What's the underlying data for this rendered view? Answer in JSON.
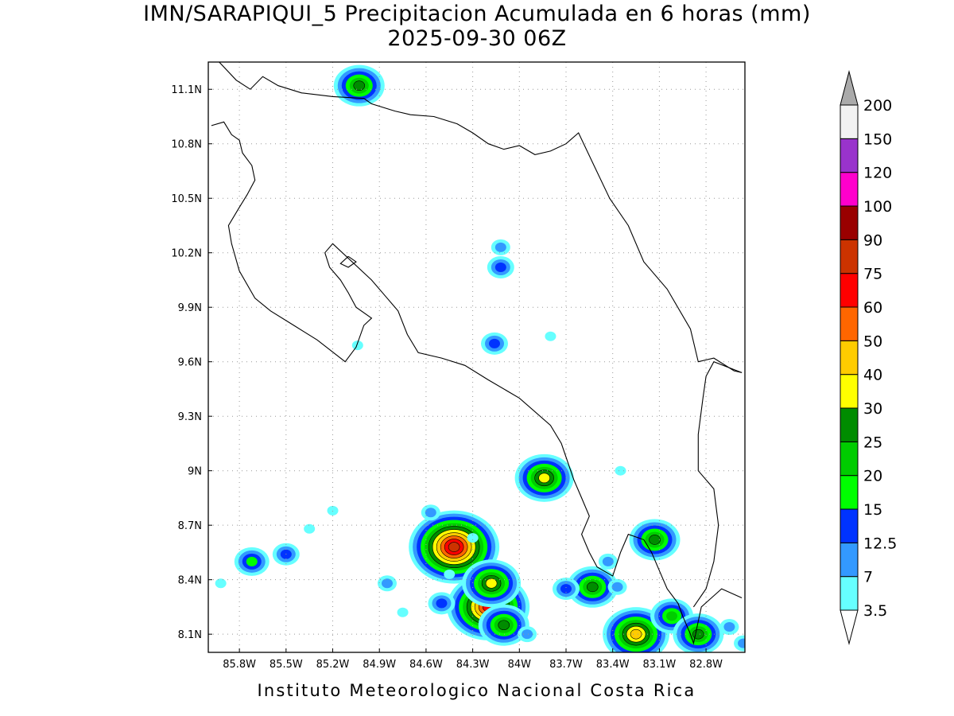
{
  "title": {
    "line1": "IMN/SARAPIQUI_5 Precipitacion Acumulada en 6 horas (mm)",
    "line2": "2025-09-30 06Z"
  },
  "footer": "Instituto Meteorologico Nacional Costa Rica",
  "map": {
    "lon_range": [
      -86.0,
      -82.55
    ],
    "lat_range": [
      8.0,
      11.25
    ],
    "grid": "dotted",
    "lon_ticks": [
      {
        "value": -85.8,
        "label": "85.8W"
      },
      {
        "value": -85.5,
        "label": "85.5W"
      },
      {
        "value": -85.2,
        "label": "85.2W"
      },
      {
        "value": -84.9,
        "label": "84.9W"
      },
      {
        "value": -84.6,
        "label": "84.6W"
      },
      {
        "value": -84.3,
        "label": "84.3W"
      },
      {
        "value": -84.0,
        "label": "84W"
      },
      {
        "value": -83.7,
        "label": "83.7W"
      },
      {
        "value": -83.4,
        "label": "83.4W"
      },
      {
        "value": -83.1,
        "label": "83.1W"
      },
      {
        "value": -82.8,
        "label": "82.8W"
      }
    ],
    "lat_ticks": [
      {
        "value": 8.1,
        "label": "8.1N"
      },
      {
        "value": 8.4,
        "label": "8.4N"
      },
      {
        "value": 8.7,
        "label": "8.7N"
      },
      {
        "value": 9.0,
        "label": "9N"
      },
      {
        "value": 9.3,
        "label": "9.3N"
      },
      {
        "value": 9.6,
        "label": "9.6N"
      },
      {
        "value": 9.9,
        "label": "9.9N"
      },
      {
        "value": 10.2,
        "label": "10.2N"
      },
      {
        "value": 10.5,
        "label": "10.5N"
      },
      {
        "value": 10.8,
        "label": "10.8N"
      },
      {
        "value": 11.1,
        "label": "11.1N"
      }
    ],
    "coastlines": [
      [
        [
          -85.93,
          11.25
        ],
        [
          -85.82,
          11.15
        ],
        [
          -85.73,
          11.1
        ],
        [
          -85.65,
          11.17
        ],
        [
          -85.55,
          11.12
        ],
        [
          -85.4,
          11.08
        ],
        [
          -85.2,
          11.06
        ],
        [
          -85.0,
          11.05
        ],
        [
          -84.95,
          11.02
        ],
        [
          -84.8,
          10.98
        ],
        [
          -84.7,
          10.96
        ],
        [
          -84.55,
          10.95
        ],
        [
          -84.4,
          10.91
        ],
        [
          -84.3,
          10.86
        ],
        [
          -84.2,
          10.8
        ],
        [
          -84.1,
          10.77
        ],
        [
          -84.0,
          10.79
        ],
        [
          -83.9,
          10.74
        ],
        [
          -83.8,
          10.76
        ],
        [
          -83.7,
          10.8
        ],
        [
          -83.62,
          10.86
        ],
        [
          -83.52,
          10.68
        ],
        [
          -83.42,
          10.5
        ],
        [
          -83.3,
          10.35
        ],
        [
          -83.2,
          10.15
        ],
        [
          -83.05,
          10.0
        ],
        [
          -82.9,
          9.78
        ],
        [
          -82.85,
          9.6
        ],
        [
          -82.75,
          9.62
        ],
        [
          -82.62,
          9.55
        ],
        [
          -82.57,
          9.54
        ]
      ],
      [
        [
          -85.98,
          10.9
        ],
        [
          -85.9,
          10.92
        ],
        [
          -85.85,
          10.85
        ],
        [
          -85.8,
          10.82
        ],
        [
          -85.78,
          10.75
        ],
        [
          -85.72,
          10.68
        ],
        [
          -85.7,
          10.6
        ],
        [
          -85.75,
          10.52
        ],
        [
          -85.8,
          10.45
        ],
        [
          -85.87,
          10.35
        ],
        [
          -85.85,
          10.25
        ],
        [
          -85.8,
          10.1
        ],
        [
          -85.7,
          9.95
        ],
        [
          -85.6,
          9.88
        ],
        [
          -85.45,
          9.8
        ],
        [
          -85.3,
          9.72
        ],
        [
          -85.12,
          9.6
        ],
        [
          -85.05,
          9.68
        ],
        [
          -85.0,
          9.8
        ],
        [
          -84.95,
          9.84
        ],
        [
          -85.05,
          9.9
        ],
        [
          -85.1,
          9.98
        ],
        [
          -85.15,
          10.05
        ],
        [
          -85.22,
          10.12
        ],
        [
          -85.25,
          10.2
        ],
        [
          -85.2,
          10.25
        ],
        [
          -84.95,
          10.05
        ],
        [
          -84.85,
          9.95
        ],
        [
          -84.78,
          9.88
        ],
        [
          -84.72,
          9.75
        ],
        [
          -84.65,
          9.65
        ],
        [
          -84.5,
          9.62
        ],
        [
          -84.35,
          9.58
        ],
        [
          -84.2,
          9.5
        ],
        [
          -84.0,
          9.4
        ],
        [
          -83.8,
          9.25
        ],
        [
          -83.73,
          9.15
        ],
        [
          -83.65,
          8.95
        ],
        [
          -83.6,
          8.85
        ],
        [
          -83.55,
          8.75
        ],
        [
          -83.6,
          8.65
        ],
        [
          -83.55,
          8.55
        ],
        [
          -83.5,
          8.47
        ],
        [
          -83.4,
          8.42
        ],
        [
          -83.35,
          8.55
        ],
        [
          -83.3,
          8.65
        ],
        [
          -83.2,
          8.62
        ],
        [
          -83.15,
          8.55
        ],
        [
          -83.1,
          8.45
        ],
        [
          -83.05,
          8.35
        ],
        [
          -82.98,
          8.27
        ],
        [
          -82.95,
          8.2
        ],
        [
          -82.9,
          8.1
        ],
        [
          -82.88,
          8.05
        ],
        [
          -82.83,
          8.25
        ],
        [
          -82.7,
          8.35
        ],
        [
          -82.57,
          8.3
        ]
      ],
      [
        [
          -82.57,
          9.54
        ],
        [
          -82.75,
          9.6
        ],
        [
          -82.8,
          9.52
        ],
        [
          -82.82,
          9.4
        ],
        [
          -82.85,
          9.2
        ],
        [
          -82.85,
          9.0
        ],
        [
          -82.75,
          8.9
        ],
        [
          -82.72,
          8.7
        ],
        [
          -82.75,
          8.5
        ],
        [
          -82.8,
          8.35
        ],
        [
          -82.88,
          8.25
        ]
      ],
      [
        [
          -85.1,
          10.18
        ],
        [
          -85.05,
          10.15
        ],
        [
          -85.1,
          10.12
        ],
        [
          -85.15,
          10.14
        ],
        [
          -85.1,
          10.18
        ]
      ]
    ],
    "precip_cells": [
      {
        "lon": -84.42,
        "lat": 8.58,
        "value": 75
      },
      {
        "lon": -84.2,
        "lat": 8.25,
        "value": 60
      },
      {
        "lon": -84.18,
        "lat": 8.38,
        "value": 30
      },
      {
        "lon": -84.1,
        "lat": 8.15,
        "value": 25
      },
      {
        "lon": -83.25,
        "lat": 8.1,
        "value": 40
      },
      {
        "lon": -83.02,
        "lat": 8.2,
        "value": 20
      },
      {
        "lon": -82.85,
        "lat": 8.1,
        "value": 25
      },
      {
        "lon": -83.13,
        "lat": 8.62,
        "value": 25
      },
      {
        "lon": -83.84,
        "lat": 8.96,
        "value": 30
      },
      {
        "lon": -83.53,
        "lat": 8.36,
        "value": 25
      },
      {
        "lon": -85.72,
        "lat": 8.5,
        "value": 15
      },
      {
        "lon": -85.5,
        "lat": 8.54,
        "value": 12.5
      },
      {
        "lon": -85.03,
        "lat": 11.12,
        "value": 25
      },
      {
        "lon": -84.16,
        "lat": 9.7,
        "value": 12.5
      },
      {
        "lon": -84.12,
        "lat": 10.12,
        "value": 12.5
      },
      {
        "lon": -84.12,
        "lat": 10.23,
        "value": 7
      },
      {
        "lon": -84.5,
        "lat": 8.27,
        "value": 12.5
      },
      {
        "lon": -83.43,
        "lat": 8.5,
        "value": 7
      },
      {
        "lon": -84.57,
        "lat": 8.77,
        "value": 7
      },
      {
        "lon": -85.35,
        "lat": 8.68,
        "value": 3.5
      },
      {
        "lon": -84.85,
        "lat": 8.38,
        "value": 7
      },
      {
        "lon": -84.75,
        "lat": 8.22,
        "value": 3.5
      },
      {
        "lon": -83.37,
        "lat": 8.36,
        "value": 7
      },
      {
        "lon": -83.7,
        "lat": 8.35,
        "value": 12.5
      },
      {
        "lon": -83.95,
        "lat": 8.1,
        "value": 7
      },
      {
        "lon": -82.65,
        "lat": 8.14,
        "value": 7
      },
      {
        "lon": -82.56,
        "lat": 8.05,
        "value": 7
      },
      {
        "lon": -85.2,
        "lat": 8.78,
        "value": 3.5
      },
      {
        "lon": -85.92,
        "lat": 8.38,
        "value": 3.5
      },
      {
        "lon": -85.04,
        "lat": 9.69,
        "value": 3.5
      },
      {
        "lon": -83.8,
        "lat": 9.74,
        "value": 3.5
      },
      {
        "lon": -83.35,
        "lat": 9.0,
        "value": 3.5
      },
      {
        "lon": -84.45,
        "lat": 8.43,
        "value": 3.5
      },
      {
        "lon": -84.3,
        "lat": 8.63,
        "value": 3.5
      }
    ]
  },
  "colorbar": {
    "levels": [
      "3.5",
      "7",
      "12.5",
      "15",
      "20",
      "25",
      "30",
      "40",
      "50",
      "60",
      "75",
      "90",
      "100",
      "120",
      "150",
      "200"
    ],
    "colors": [
      "#66ffff",
      "#3399ff",
      "#0033ff",
      "#00ff00",
      "#00cc00",
      "#008c00",
      "#ffff00",
      "#ffcc00",
      "#ff6600",
      "#ff0000",
      "#cc3300",
      "#990000",
      "#ff00cc",
      "#9933cc",
      "#f2f2f2",
      "#aaaaaa"
    ]
  }
}
